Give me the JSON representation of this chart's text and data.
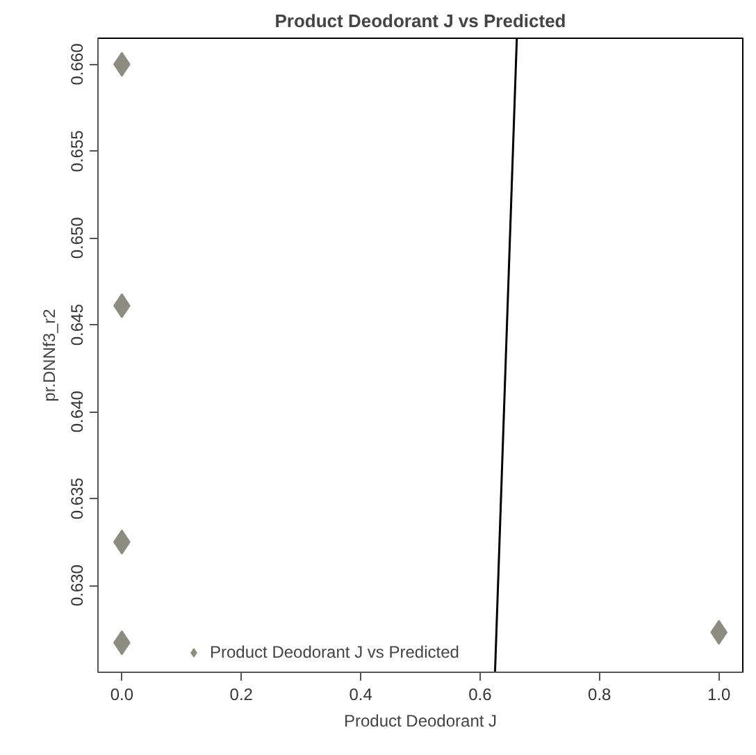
{
  "chart_data": {
    "type": "scatter",
    "title": "Product Deodorant J vs Predicted",
    "xlabel": "Product Deodorant J",
    "ylabel": "pr.DNNf3_r2",
    "series": [
      {
        "name": "Product Deodorant J vs Predicted",
        "color": "#8c8c80",
        "marker": "diamond",
        "x": [
          0,
          0,
          0,
          0,
          1
        ],
        "values": [
          0.66,
          0.6461,
          0.6325,
          0.6267,
          0.6273
        ]
      },
      {
        "type": "line",
        "color": "#000000",
        "x": [
          0.625,
          0.6615
        ],
        "values": [
          0.625,
          0.6615
        ]
      }
    ],
    "xlim": [
      -0.04,
      1.04
    ],
    "ylim": [
      0.625,
      0.6615
    ],
    "xticks": [
      {
        "value": 0,
        "label": "0.0"
      },
      0.2,
      0.4,
      0.6,
      0.8,
      {
        "value": 1,
        "label": "1.0"
      }
    ],
    "yticks": [
      {
        "value": 0.63,
        "label": "0.630"
      },
      0.635,
      {
        "value": 0.64,
        "label": "0.640"
      },
      0.645,
      {
        "value": 0.65,
        "label": "0.650"
      },
      0.655,
      {
        "value": 0.66,
        "label": "0.660"
      }
    ],
    "grid": false,
    "legend": "bottom"
  }
}
